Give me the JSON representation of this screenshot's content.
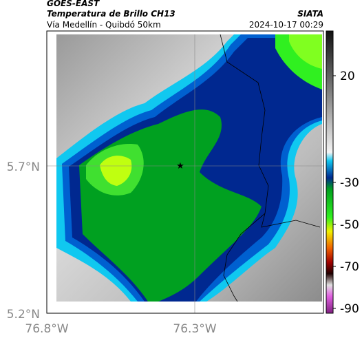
{
  "header": {
    "source": "GOES-EAST",
    "product": "Temperatura de Brillo CH13",
    "region": "Vía Medellín - Quibdó 50km",
    "agency": "SIATA",
    "timestamp": "2024-10-17 00:29"
  },
  "map": {
    "lat_labels": [
      "5.7°N",
      "5.2°N"
    ],
    "lon_labels": [
      "76.8°W",
      "76.3°W"
    ]
  },
  "colorbar": {
    "ticks": [
      20,
      -30,
      -50,
      -70,
      -90
    ]
  }
}
